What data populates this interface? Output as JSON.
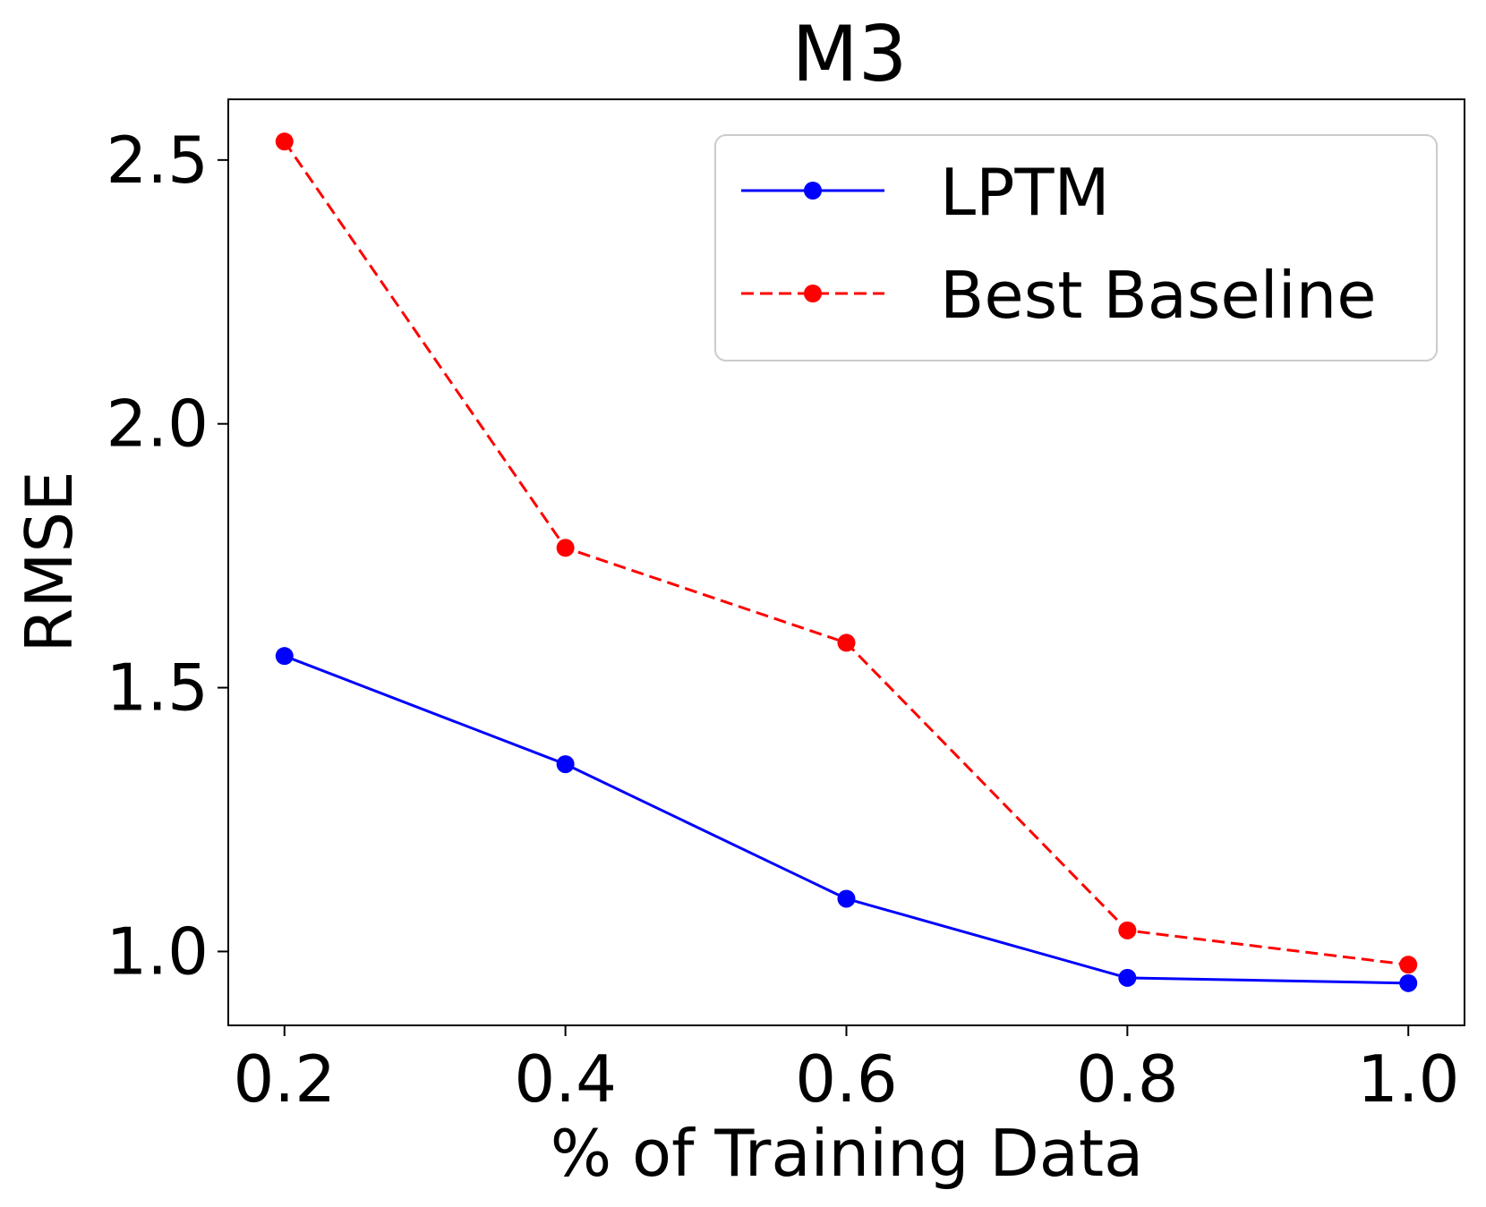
{
  "chart_data": {
    "type": "line",
    "title": "M3",
    "xlabel": "% of Training Data",
    "ylabel": "RMSE",
    "x": [
      0.2,
      0.4,
      0.6,
      0.8,
      1.0
    ],
    "xticks": [
      0.2,
      0.4,
      0.6,
      0.8,
      1.0
    ],
    "xtick_labels": [
      "0.2",
      "0.4",
      "0.6",
      "0.8",
      "1.0"
    ],
    "yticks": [
      1.0,
      1.5,
      2.0,
      2.5
    ],
    "ytick_labels": [
      "1.0",
      "1.5",
      "2.0",
      "2.5"
    ],
    "xlim": [
      0.16,
      1.04
    ],
    "ylim": [
      0.86,
      2.615
    ],
    "grid": false,
    "legend_position": "top-right",
    "series": [
      {
        "name": "LPTM",
        "color": "#0000ff",
        "style": "solid",
        "marker": "circle",
        "values": [
          1.56,
          1.355,
          1.1,
          0.95,
          0.94
        ]
      },
      {
        "name": "Best Baseline",
        "color": "#ff0000",
        "style": "dashed",
        "marker": "circle",
        "values": [
          2.535,
          1.765,
          1.585,
          1.04,
          0.975
        ]
      }
    ]
  }
}
